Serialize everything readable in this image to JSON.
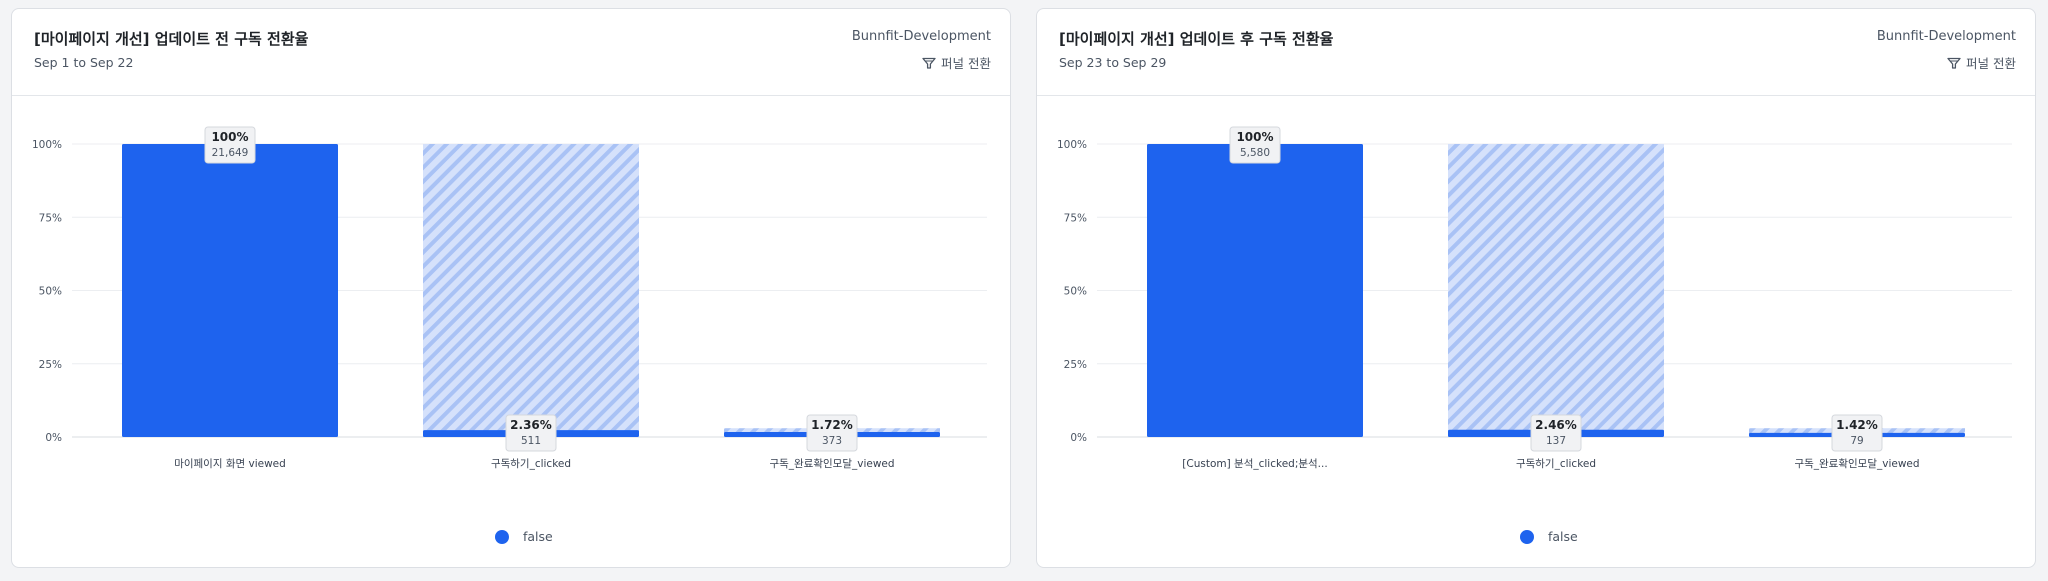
{
  "colors": {
    "accent": "#1e63ee",
    "hatch": "#a9c2f5",
    "hatch_bg": "#d5e1fb"
  },
  "chart_data": [
    {
      "type": "bar",
      "title": "[마이페이지 개선] 업데이트 전 구독 전환율",
      "subtitle": "Sep 1 to Sep 22",
      "project": "Bunnfit-Development",
      "mode_label": "퍼널 전환",
      "categories": [
        "마이페이지 화면 viewed",
        "구독하기_clicked",
        "구독_완료확인모달_viewed"
      ],
      "series": [
        {
          "name": "false",
          "values": [
            100,
            2.36,
            1.72
          ],
          "counts": [
            "21,649",
            "511",
            "373"
          ]
        }
      ],
      "value_labels": [
        "100%",
        "2.36%",
        "1.72%"
      ],
      "ghost_values": [
        null,
        100,
        3
      ],
      "yticks": [
        "0%",
        "25%",
        "50%",
        "75%",
        "100%"
      ],
      "ylim": [
        0,
        100
      ],
      "grid": true,
      "legend_position": "bottom"
    },
    {
      "type": "bar",
      "title": "[마이페이지 개선] 업데이트 후 구독 전환율",
      "subtitle": "Sep 23 to Sep 29",
      "project": "Bunnfit-Development",
      "mode_label": "퍼널 전환",
      "categories": [
        "[Custom] 분석_clicked;분석...",
        "구독하기_clicked",
        "구독_완료확인모달_viewed"
      ],
      "series": [
        {
          "name": "false",
          "values": [
            100,
            2.46,
            1.42
          ],
          "counts": [
            "5,580",
            "137",
            "79"
          ]
        }
      ],
      "value_labels": [
        "100%",
        "2.46%",
        "1.42%"
      ],
      "ghost_values": [
        null,
        100,
        3
      ],
      "yticks": [
        "0%",
        "25%",
        "50%",
        "75%",
        "100%"
      ],
      "ylim": [
        0,
        100
      ],
      "grid": true,
      "legend_position": "bottom"
    }
  ]
}
